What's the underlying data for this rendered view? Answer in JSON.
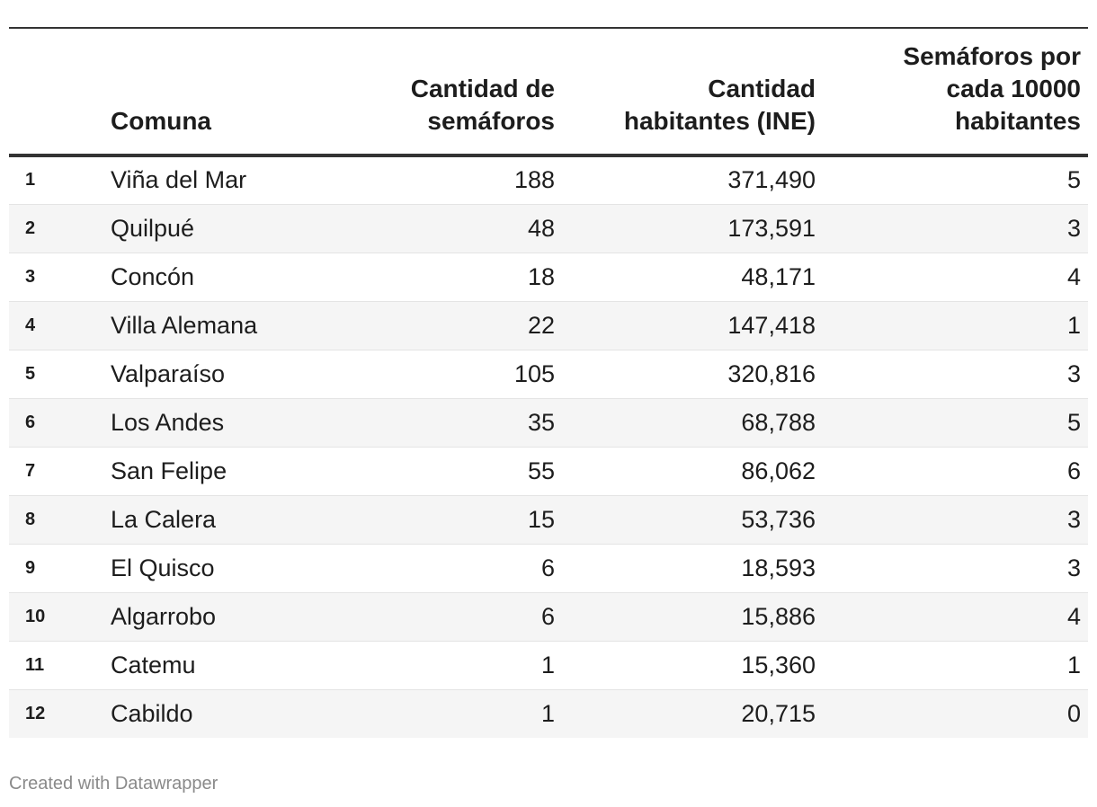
{
  "table": {
    "headers": {
      "rank": "",
      "comuna": "Comuna",
      "semaforos": [
        "Cantidad de",
        "semáforos"
      ],
      "habitantes": [
        "Cantidad",
        "habitantes (INE)"
      ],
      "por_habitantes": [
        "Semáforos por",
        "cada 10000",
        "habitantes"
      ]
    },
    "rows": [
      {
        "rank": "1",
        "comuna": "Viña del Mar",
        "semaforos": "188",
        "habitantes": "371,490",
        "por_10000": "5"
      },
      {
        "rank": "2",
        "comuna": "Quilpué",
        "semaforos": "48",
        "habitantes": "173,591",
        "por_10000": "3"
      },
      {
        "rank": "3",
        "comuna": "Concón",
        "semaforos": "18",
        "habitantes": "48,171",
        "por_10000": "4"
      },
      {
        "rank": "4",
        "comuna": "Villa Alemana",
        "semaforos": "22",
        "habitantes": "147,418",
        "por_10000": "1"
      },
      {
        "rank": "5",
        "comuna": "Valparaíso",
        "semaforos": "105",
        "habitantes": "320,816",
        "por_10000": "3"
      },
      {
        "rank": "6",
        "comuna": "Los Andes",
        "semaforos": "35",
        "habitantes": "68,788",
        "por_10000": "5"
      },
      {
        "rank": "7",
        "comuna": "San Felipe",
        "semaforos": "55",
        "habitantes": "86,062",
        "por_10000": "6"
      },
      {
        "rank": "8",
        "comuna": "La Calera",
        "semaforos": "15",
        "habitantes": "53,736",
        "por_10000": "3"
      },
      {
        "rank": "9",
        "comuna": "El Quisco",
        "semaforos": "6",
        "habitantes": "18,593",
        "por_10000": "3"
      },
      {
        "rank": "10",
        "comuna": "Algarrobo",
        "semaforos": "6",
        "habitantes": "15,886",
        "por_10000": "4"
      },
      {
        "rank": "11",
        "comuna": "Catemu",
        "semaforos": "1",
        "habitantes": "15,360",
        "por_10000": "1"
      },
      {
        "rank": "12",
        "comuna": "Cabildo",
        "semaforos": "1",
        "habitantes": "20,715",
        "por_10000": "0"
      }
    ]
  },
  "footer": {
    "credit": "Created with Datawrapper"
  },
  "colors": {
    "header_rule": "#333333",
    "alt_row": "#f5f5f5",
    "row_divider": "#e4e4e4",
    "footer_text": "#8a8a8a"
  }
}
